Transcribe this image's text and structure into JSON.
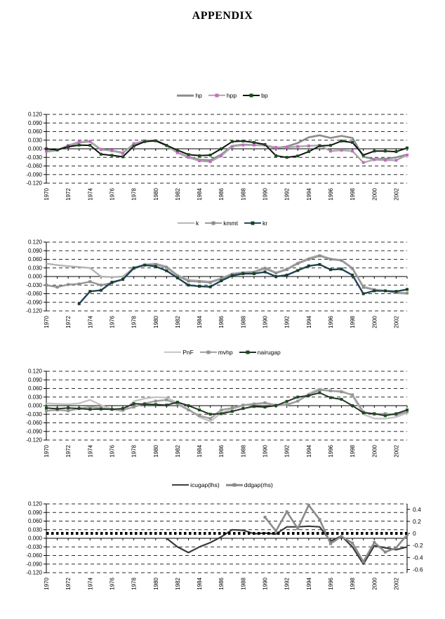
{
  "page": {
    "title": "APPENDIX"
  },
  "chart_data": [
    {
      "type": "line",
      "name": "hp-hpp-bp-gaps",
      "categories": [
        1970,
        1971,
        1972,
        1973,
        1974,
        1975,
        1976,
        1977,
        1978,
        1979,
        1980,
        1981,
        1982,
        1983,
        1984,
        1985,
        1986,
        1987,
        1988,
        1989,
        1990,
        1991,
        1992,
        1993,
        1994,
        1995,
        1996,
        1997,
        1998,
        1999,
        2000,
        2001,
        2002,
        2003
      ],
      "x_tick_labels": [
        "1970",
        "1972",
        "1974",
        "1976",
        "1978",
        "1980",
        "1982",
        "1984",
        "1986",
        "1988",
        "1990",
        "1992",
        "1994",
        "1996",
        "1998",
        "2000",
        "2002"
      ],
      "y_axis": {
        "min": -0.12,
        "max": 0.12,
        "step": 0.03,
        "tick_labels": [
          "0.120",
          "0.090",
          "0.060",
          "0.030",
          "0.000",
          "-0.030",
          "-0.060",
          "-0.090",
          "-0.120"
        ]
      },
      "grid": "horizontal-dashed",
      "legend_position": "top",
      "series": [
        {
          "name": "hp",
          "color": "#8c8c8c",
          "width": 2.6,
          "marker": null,
          "axis": "left",
          "values": [
            -0.01,
            -0.005,
            0.01,
            0.022,
            0.025,
            -0.003,
            -0.006,
            -0.014,
            0.015,
            0.028,
            0.03,
            0.012,
            -0.013,
            -0.028,
            -0.038,
            -0.04,
            -0.02,
            0.01,
            0.015,
            0.013,
            0.012,
            0.003,
            0.008,
            0.02,
            0.04,
            0.047,
            0.038,
            0.045,
            0.038,
            -0.028,
            -0.036,
            -0.035,
            -0.03,
            -0.02
          ]
        },
        {
          "name": "hpp",
          "color": "#a8a8a8",
          "width": 2.4,
          "marker": "#cc66cc",
          "axis": "left",
          "values": [
            -0.008,
            -0.004,
            0.012,
            0.024,
            0.026,
            -0.002,
            -0.007,
            -0.016,
            0.018,
            0.028,
            0.028,
            0.011,
            -0.014,
            -0.03,
            -0.042,
            -0.045,
            -0.025,
            0.008,
            0.013,
            0.013,
            0.013,
            0.005,
            0.005,
            0.008,
            0.01,
            0.012,
            -0.008,
            -0.005,
            -0.008,
            -0.048,
            -0.038,
            -0.04,
            -0.04,
            -0.022
          ]
        },
        {
          "name": "bp",
          "color": "#111111",
          "width": 2.0,
          "marker": "#1a4d1a",
          "axis": "left",
          "values": [
            0.0,
            -0.004,
            0.007,
            0.013,
            0.012,
            -0.019,
            -0.023,
            -0.028,
            0.009,
            0.025,
            0.028,
            0.012,
            -0.005,
            -0.02,
            -0.024,
            -0.022,
            0.0,
            0.025,
            0.027,
            0.022,
            0.015,
            -0.024,
            -0.03,
            -0.025,
            -0.01,
            0.01,
            0.012,
            0.027,
            0.022,
            -0.022,
            -0.008,
            -0.008,
            -0.01,
            0.003
          ]
        }
      ]
    },
    {
      "type": "line",
      "name": "k-kmmt-kr-gaps",
      "categories": [
        1970,
        1971,
        1972,
        1973,
        1974,
        1975,
        1976,
        1977,
        1978,
        1979,
        1980,
        1981,
        1982,
        1983,
        1984,
        1985,
        1986,
        1987,
        1988,
        1989,
        1990,
        1991,
        1992,
        1993,
        1994,
        1995,
        1996,
        1997,
        1998,
        1999,
        2000,
        2001,
        2002,
        2003
      ],
      "x_tick_labels": [
        "1970",
        "1972",
        "1974",
        "1976",
        "1978",
        "1980",
        "1982",
        "1984",
        "1986",
        "1988",
        "1990",
        "1992",
        "1994",
        "1996",
        "1998",
        "2000",
        "2002"
      ],
      "y_axis": {
        "min": -0.12,
        "max": 0.12,
        "step": 0.03,
        "tick_labels": [
          "0.120",
          "0.090",
          "0.060",
          "0.030",
          "0.000",
          "-0.030",
          "-0.060",
          "-0.090",
          "-0.120"
        ]
      },
      "grid": "horizontal-dashed",
      "legend_position": "top",
      "series": [
        {
          "name": "k",
          "color": "#b3b3b3",
          "width": 2.4,
          "marker": null,
          "axis": "left",
          "values": [
            0.045,
            0.04,
            0.036,
            0.033,
            0.03,
            0.0,
            -0.002,
            0.0,
            0.03,
            0.042,
            0.045,
            0.035,
            0.005,
            -0.012,
            -0.015,
            -0.018,
            -0.006,
            0.01,
            0.015,
            0.017,
            0.032,
            0.014,
            0.027,
            0.048,
            0.064,
            0.075,
            0.062,
            0.058,
            0.03,
            -0.035,
            -0.045,
            -0.05,
            -0.058,
            -0.06
          ]
        },
        {
          "name": "kmmt",
          "color": "#979797",
          "width": 2.4,
          "marker": "#8c8c8c",
          "axis": "left",
          "values": [
            -0.03,
            -0.037,
            -0.028,
            -0.026,
            -0.018,
            -0.03,
            -0.022,
            -0.01,
            0.028,
            0.04,
            0.042,
            0.032,
            0.002,
            -0.016,
            -0.018,
            -0.021,
            -0.008,
            0.008,
            0.013,
            0.015,
            0.028,
            0.012,
            0.024,
            0.045,
            0.06,
            0.072,
            0.06,
            0.056,
            0.028,
            -0.038,
            -0.046,
            -0.05,
            -0.056,
            -0.058
          ]
        },
        {
          "name": "kr",
          "color": "#1f4257",
          "width": 2.4,
          "marker": "#17401f",
          "axis": "left",
          "values": [
            null,
            null,
            null,
            -0.095,
            -0.052,
            -0.048,
            -0.02,
            -0.01,
            0.03,
            0.04,
            0.035,
            0.02,
            -0.005,
            -0.03,
            -0.034,
            -0.036,
            -0.015,
            0.003,
            0.01,
            0.01,
            0.016,
            0.0,
            0.005,
            0.021,
            0.037,
            0.042,
            0.024,
            0.026,
            0.005,
            -0.06,
            -0.05,
            -0.05,
            -0.052,
            -0.045
          ]
        }
      ]
    },
    {
      "type": "line",
      "name": "PnF-mvhp-nairugap-gaps",
      "categories": [
        1970,
        1971,
        1972,
        1973,
        1974,
        1975,
        1976,
        1977,
        1978,
        1979,
        1980,
        1981,
        1982,
        1983,
        1984,
        1985,
        1986,
        1987,
        1988,
        1989,
        1990,
        1991,
        1992,
        1993,
        1994,
        1995,
        1996,
        1997,
        1998,
        1999,
        2000,
        2001,
        2002,
        2003
      ],
      "x_tick_labels": [
        "1970",
        "1972",
        "1974",
        "1976",
        "1978",
        "1980",
        "1982",
        "1984",
        "1986",
        "1988",
        "1990",
        "1992",
        "1994",
        "1996",
        "1998",
        "2000",
        "2002"
      ],
      "y_axis": {
        "min": -0.12,
        "max": 0.12,
        "step": 0.03,
        "tick_labels": [
          "0.120",
          "0.090",
          "0.060",
          "0.030",
          "0.000",
          "-0.030",
          "-0.060",
          "-0.090",
          "-0.120"
        ]
      },
      "grid": "horizontal-dashed",
      "legend_position": "top",
      "series": [
        {
          "name": "PnF",
          "color": "#c4c4c4",
          "width": 2.4,
          "marker": null,
          "axis": "left",
          "values": [
            0.008,
            0.006,
            0.005,
            0.008,
            0.02,
            0.002,
            -0.012,
            -0.02,
            0.015,
            0.025,
            0.03,
            0.028,
            0.01,
            -0.012,
            -0.04,
            -0.055,
            -0.025,
            -0.012,
            0.0,
            0.005,
            0.008,
            0.0,
            0.002,
            0.015,
            0.042,
            0.06,
            0.05,
            0.052,
            0.035,
            -0.03,
            -0.045,
            -0.045,
            -0.04,
            -0.025
          ]
        },
        {
          "name": "mvhp",
          "color": "#9e9e9e",
          "width": 2.4,
          "marker": "#949494",
          "axis": "left",
          "values": [
            -0.018,
            -0.015,
            -0.018,
            -0.01,
            -0.005,
            -0.008,
            -0.012,
            -0.015,
            -0.005,
            0.008,
            0.016,
            0.02,
            0.005,
            -0.015,
            -0.035,
            -0.045,
            -0.015,
            -0.008,
            0.002,
            0.006,
            0.01,
            0.002,
            0.004,
            0.016,
            0.038,
            0.055,
            0.052,
            0.048,
            0.038,
            -0.022,
            -0.03,
            -0.028,
            -0.032,
            -0.022
          ]
        },
        {
          "name": "nairugap",
          "color": "#26322a",
          "width": 2.0,
          "marker": "#1a4d1a",
          "axis": "left",
          "values": [
            -0.008,
            -0.011,
            -0.008,
            -0.01,
            -0.013,
            -0.012,
            -0.013,
            -0.01,
            0.007,
            0.005,
            0.004,
            0.002,
            0.012,
            0.0,
            -0.015,
            -0.03,
            -0.028,
            -0.02,
            -0.01,
            -0.003,
            -0.005,
            0.0,
            0.015,
            0.03,
            0.035,
            0.045,
            0.028,
            0.022,
            0.0,
            -0.025,
            -0.028,
            -0.035,
            -0.028,
            -0.015
          ]
        }
      ]
    },
    {
      "type": "line",
      "name": "icugap-ddgap",
      "categories": [
        1970,
        1971,
        1972,
        1973,
        1974,
        1975,
        1976,
        1977,
        1978,
        1979,
        1980,
        1981,
        1982,
        1983,
        1984,
        1985,
        1986,
        1987,
        1988,
        1989,
        1990,
        1991,
        1992,
        1993,
        1994,
        1995,
        1996,
        1997,
        1998,
        1999,
        2000,
        2001,
        2002,
        2003
      ],
      "x_tick_labels": [
        "1970",
        "1972",
        "1974",
        "1976",
        "1978",
        "1980",
        "1982",
        "1984",
        "1986",
        "1988",
        "1990",
        "1992",
        "1994",
        "1996",
        "1998",
        "2000",
        "2002"
      ],
      "y_axis": {
        "min": -0.12,
        "max": 0.12,
        "step": 0.03,
        "tick_labels": [
          "0.120",
          "0.090",
          "0.060",
          "0.030",
          "0.000",
          "-0.030",
          "-0.060",
          "-0.090",
          "-0.120"
        ]
      },
      "right_axis": {
        "tick_labels": [
          "0.4",
          "0.2",
          "0",
          "-0.2",
          "-0.4",
          "-0.6"
        ],
        "tick_values": [
          0.4,
          0.2,
          0,
          -0.2,
          -0.4,
          -0.6
        ],
        "left_offset": 0.017,
        "left_per_unit": 0.21
      },
      "reference_line": {
        "name": "rhs-zero-dotted-line",
        "at_left_value": 0.017,
        "style": "dotted",
        "color": "#000000"
      },
      "grid": "horizontal-dashed",
      "legend_position": "top",
      "series": [
        {
          "name": "icugap(lhs)",
          "color": "#3a3a3a",
          "width": 2.2,
          "marker": null,
          "axis": "left",
          "values": [
            null,
            null,
            null,
            null,
            null,
            null,
            null,
            null,
            null,
            null,
            null,
            0.0,
            -0.03,
            -0.05,
            -0.03,
            -0.015,
            0.005,
            0.03,
            0.028,
            0.016,
            0.018,
            0.015,
            0.04,
            0.04,
            0.042,
            0.04,
            -0.01,
            0.008,
            -0.03,
            -0.09,
            -0.026,
            -0.033,
            -0.04,
            -0.03
          ]
        },
        {
          "name": "ddgap(rhs)",
          "color": "#8a8a8a",
          "width": 2.6,
          "marker": "#8a8a8a",
          "axis": "right",
          "values": [
            null,
            null,
            null,
            null,
            null,
            null,
            null,
            null,
            null,
            null,
            null,
            null,
            null,
            null,
            null,
            null,
            null,
            null,
            null,
            null,
            0.27,
            0.04,
            0.36,
            0.08,
            0.47,
            0.23,
            -0.17,
            -0.05,
            -0.16,
            -0.47,
            -0.15,
            -0.31,
            -0.24,
            -0.02
          ]
        }
      ]
    }
  ]
}
